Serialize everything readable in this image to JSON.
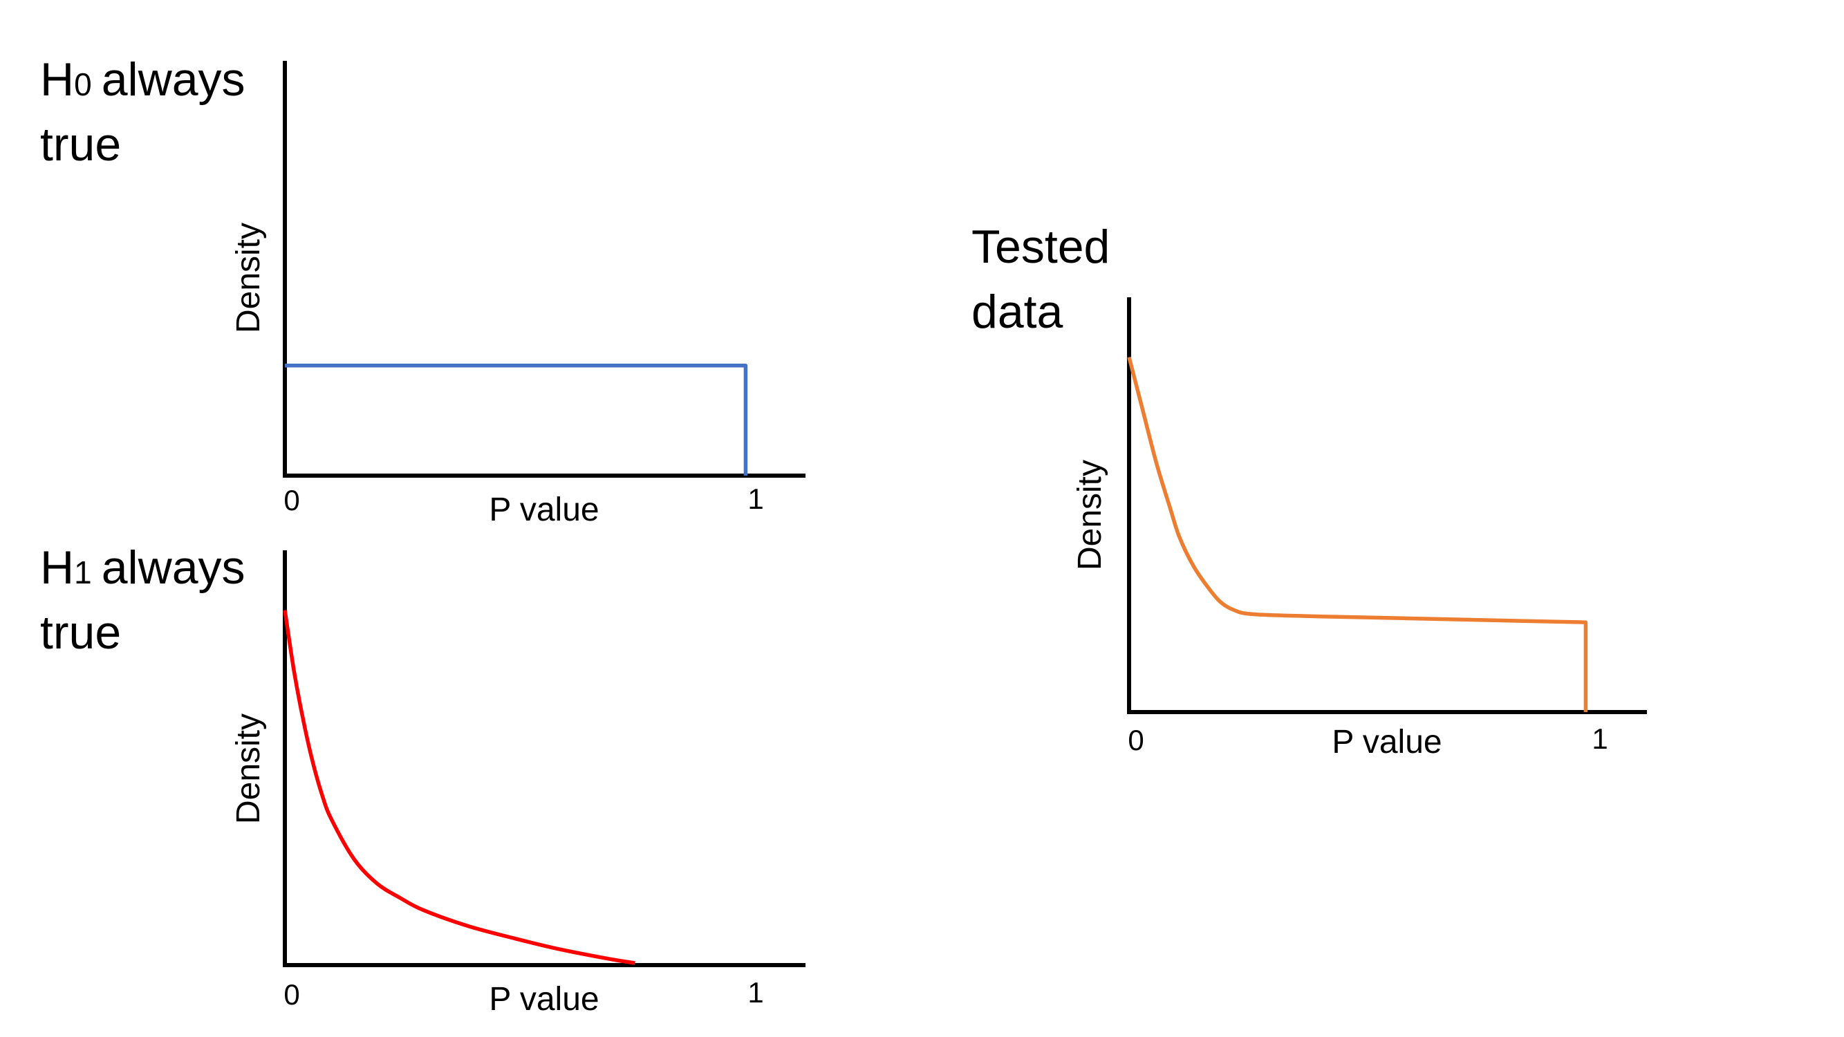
{
  "chart_data": [
    {
      "type": "line",
      "title": "always true",
      "title_prefix": "H",
      "title_subscript": "0",
      "title_lines": [
        "always",
        "true"
      ],
      "xlabel": "P value",
      "ylabel": "Density",
      "x_ticks": [
        "0",
        "1"
      ],
      "xlim": [
        0,
        1.1
      ],
      "ylim": [
        0,
        1
      ],
      "series": [
        {
          "color": "#4472C4",
          "x": [
            0,
            1,
            1
          ],
          "y": [
            0.27,
            0.27,
            0
          ]
        }
      ]
    },
    {
      "type": "line",
      "title": "always true",
      "title_prefix": "H",
      "title_subscript": "1",
      "title_lines": [
        "always",
        "true"
      ],
      "xlabel": "P value",
      "ylabel": "Density",
      "x_ticks": [
        "0",
        "1"
      ],
      "xlim": [
        0,
        1.1
      ],
      "ylim": [
        0,
        1
      ],
      "series": [
        {
          "color": "#FF0000",
          "x": [
            0,
            0.02,
            0.04,
            0.06,
            0.08,
            0.1,
            0.15,
            0.2,
            0.25,
            0.3,
            0.4,
            0.5,
            0.6,
            0.7,
            0.76
          ],
          "y": [
            0.87,
            0.72,
            0.6,
            0.5,
            0.42,
            0.36,
            0.26,
            0.2,
            0.165,
            0.135,
            0.095,
            0.065,
            0.038,
            0.016,
            0.005
          ]
        }
      ]
    },
    {
      "type": "line",
      "title_lines": [
        "Tested",
        "data"
      ],
      "xlabel": "P value",
      "ylabel": "Density",
      "x_ticks": [
        "0",
        "1"
      ],
      "xlim": [
        0,
        1.11
      ],
      "ylim": [
        0,
        1
      ],
      "series": [
        {
          "color": "#ED7D31",
          "x": [
            0,
            0.03,
            0.06,
            0.09,
            0.11,
            0.14,
            0.17,
            0.2,
            0.23,
            0.27,
            0.4,
            0.6,
            0.8,
            1,
            1
          ],
          "y": [
            0.87,
            0.74,
            0.61,
            0.5,
            0.43,
            0.36,
            0.31,
            0.27,
            0.25,
            0.24,
            0.235,
            0.23,
            0.225,
            0.22,
            0
          ]
        }
      ]
    }
  ]
}
